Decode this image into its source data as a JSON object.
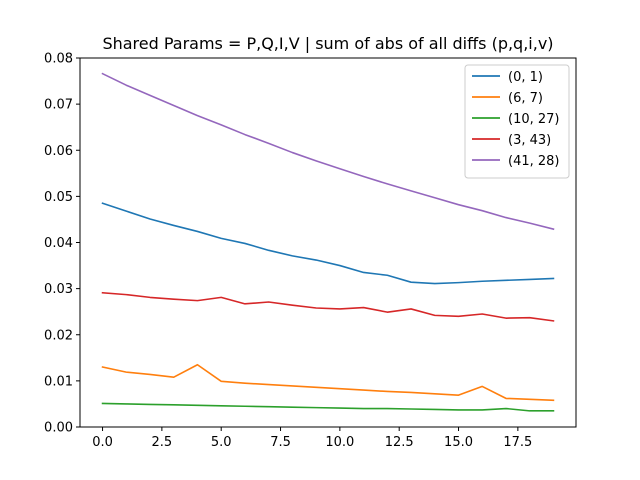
{
  "chart_data": {
    "type": "line",
    "title": "Shared Params = P,Q,I,V | sum of abs of all diffs (p,q,i,v)",
    "xlabel": "",
    "ylabel": "",
    "xlim": [
      -0.95,
      19.95
    ],
    "ylim": [
      0.0,
      0.08
    ],
    "x_ticks": [
      0,
      2.5,
      5,
      7.5,
      10,
      12.5,
      15,
      17.5
    ],
    "x_tick_labels": [
      "0.0",
      "2.5",
      "5.0",
      "7.5",
      "10.0",
      "12.5",
      "15.0",
      "17.5"
    ],
    "y_ticks": [
      0.0,
      0.01,
      0.02,
      0.03,
      0.04,
      0.05,
      0.06,
      0.07,
      0.08
    ],
    "y_tick_labels": [
      "0.00",
      "0.01",
      "0.02",
      "0.03",
      "0.04",
      "0.05",
      "0.06",
      "0.07",
      "0.08"
    ],
    "grid": false,
    "legend_position": "top-right",
    "x": [
      0,
      1,
      2,
      3,
      4,
      5,
      6,
      7,
      8,
      9,
      10,
      11,
      12,
      13,
      14,
      15,
      16,
      17,
      18,
      19
    ],
    "series": [
      {
        "name": "(0, 1)",
        "color": "#1f77b4",
        "values": [
          0.0485,
          0.0468,
          0.0451,
          0.0437,
          0.0424,
          0.0409,
          0.0398,
          0.0383,
          0.0371,
          0.0362,
          0.035,
          0.0335,
          0.0329,
          0.0314,
          0.0311,
          0.0313,
          0.0316,
          0.0318,
          0.032,
          0.0322
        ]
      },
      {
        "name": "(6, 7)",
        "color": "#ff7f0e",
        "values": [
          0.013,
          0.0119,
          0.0114,
          0.0108,
          0.0135,
          0.0099,
          0.0095,
          0.0092,
          0.0089,
          0.0086,
          0.0083,
          0.008,
          0.0077,
          0.0075,
          0.0072,
          0.0069,
          0.0088,
          0.0062,
          0.006,
          0.0058
        ]
      },
      {
        "name": "(10, 27)",
        "color": "#2ca02c",
        "values": [
          0.0051,
          0.005,
          0.0049,
          0.0048,
          0.0047,
          0.0046,
          0.0045,
          0.0044,
          0.0043,
          0.0042,
          0.0041,
          0.004,
          0.004,
          0.0039,
          0.0038,
          0.0037,
          0.0037,
          0.004,
          0.0035,
          0.0035
        ]
      },
      {
        "name": "(3, 43)",
        "color": "#d62728",
        "values": [
          0.0291,
          0.0287,
          0.0281,
          0.0277,
          0.0274,
          0.0281,
          0.0267,
          0.0271,
          0.0264,
          0.0258,
          0.0256,
          0.0259,
          0.0249,
          0.0256,
          0.0242,
          0.024,
          0.0245,
          0.0236,
          0.0237,
          0.023
        ]
      },
      {
        "name": "(41, 28)",
        "color": "#9467bd",
        "values": [
          0.0766,
          0.0741,
          0.0719,
          0.0697,
          0.0675,
          0.0655,
          0.0634,
          0.0615,
          0.0595,
          0.0577,
          0.056,
          0.0543,
          0.0527,
          0.0512,
          0.0497,
          0.0482,
          0.0469,
          0.0454,
          0.0442,
          0.0429
        ]
      }
    ]
  }
}
